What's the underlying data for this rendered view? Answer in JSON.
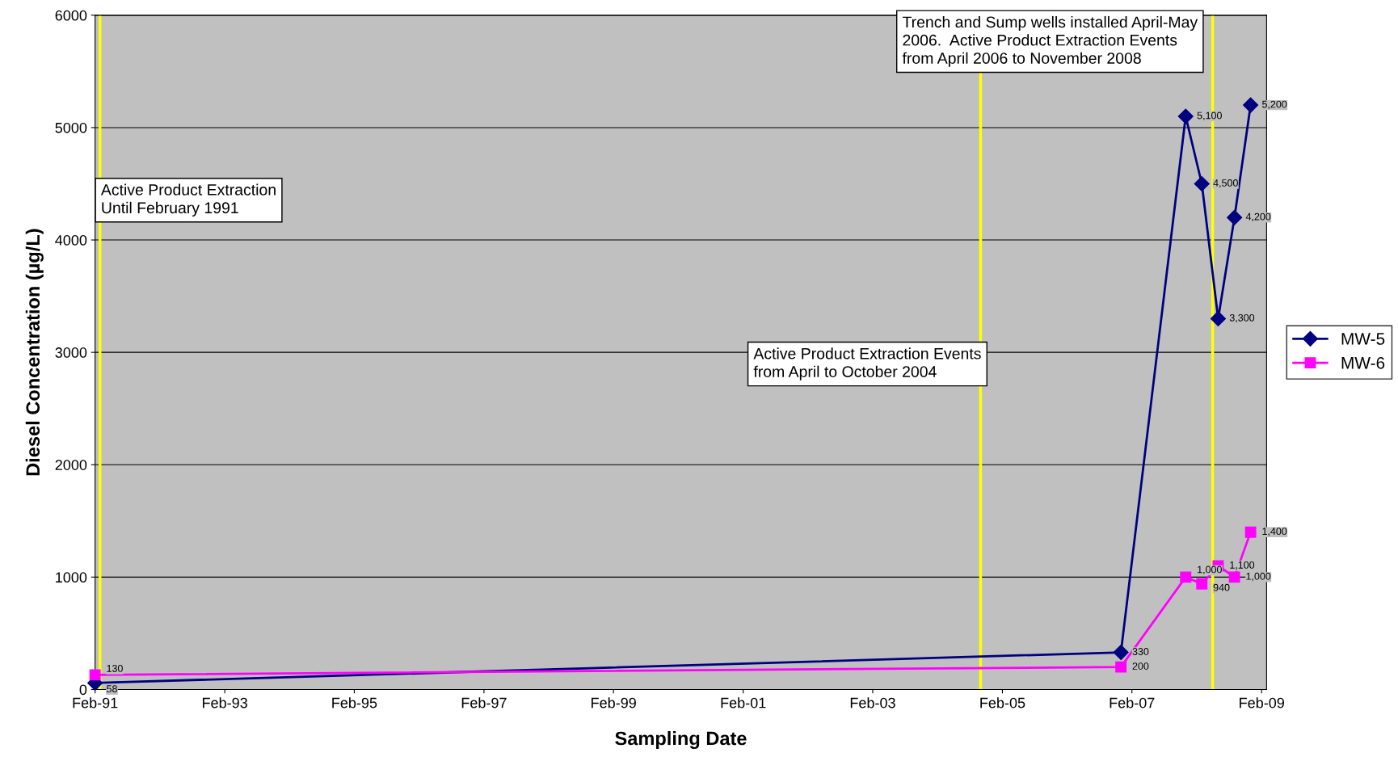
{
  "chart_data": {
    "type": "line",
    "xlabel": "Sampling Date",
    "ylabel": "Diesel Concentration (µg/L)",
    "xlim": [
      "1991-02-01",
      "2009-03-01"
    ],
    "ylim": [
      0,
      6000
    ],
    "yticks": [
      0,
      1000,
      2000,
      3000,
      4000,
      5000,
      6000
    ],
    "xticks": [
      {
        "value": "1991-02-01",
        "label": "Feb-91"
      },
      {
        "value": "1993-02-01",
        "label": "Feb-93"
      },
      {
        "value": "1995-02-01",
        "label": "Feb-95"
      },
      {
        "value": "1997-02-01",
        "label": "Feb-97"
      },
      {
        "value": "1999-02-01",
        "label": "Feb-99"
      },
      {
        "value": "2001-02-01",
        "label": "Feb-01"
      },
      {
        "value": "2003-02-01",
        "label": "Feb-03"
      },
      {
        "value": "2005-02-01",
        "label": "Feb-05"
      },
      {
        "value": "2007-02-01",
        "label": "Feb-07"
      },
      {
        "value": "2009-02-01",
        "label": "Feb-09"
      }
    ],
    "x": [
      "1991-02-01",
      "2006-12-01",
      "2007-12-01",
      "2008-03-01",
      "2008-06-01",
      "2008-09-01",
      "2008-12-01"
    ],
    "series": [
      {
        "name": "MW-5",
        "color": "#000080",
        "marker": "diamond",
        "values": [
          58,
          330,
          5100,
          4500,
          3300,
          4200,
          5200
        ],
        "value_labels": [
          "58",
          "330",
          "5,100",
          "4,500",
          "3,300",
          "4,200",
          "5,200"
        ]
      },
      {
        "name": "MW-6",
        "color": "#ff00ff",
        "marker": "square",
        "values": [
          130,
          200,
          1000,
          940,
          1100,
          1000,
          1400
        ],
        "value_labels": [
          "130",
          "200",
          "1,000",
          "940",
          "1,100",
          "1,000",
          "1,400"
        ]
      }
    ],
    "ref_lines": [
      {
        "axis": "x",
        "value": "1991-03-01",
        "color": "#ffff00",
        "label": "Active Product Extraction\nUntil February 1991"
      },
      {
        "axis": "x",
        "value": "2004-10-01",
        "color": "#ffff00",
        "label": "Active Product Extraction Events\nfrom April to October 2004"
      },
      {
        "axis": "x",
        "value": "2008-05-01",
        "color": "#ffff00",
        "label": "Trench and Sump wells installed April-May\n2006.  Active Product Extraction Events\nfrom April 2006 to November 2008"
      }
    ],
    "grid": "y",
    "legend": "right",
    "line_style": "solid"
  }
}
